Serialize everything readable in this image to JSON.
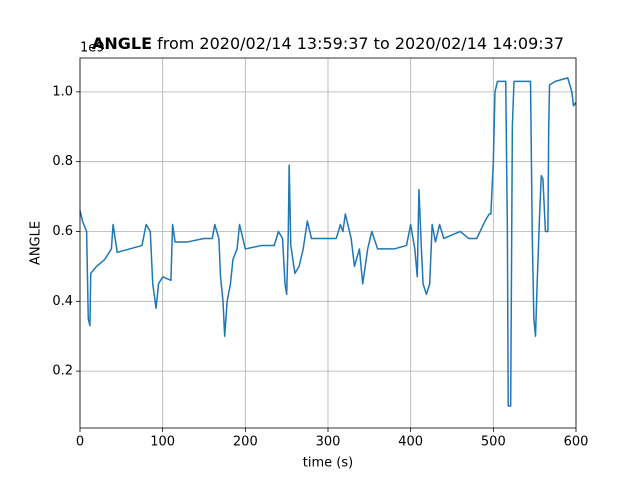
{
  "chart_data": {
    "type": "line",
    "title_bold": "ANGLE",
    "title": "from 2020/02/14 13:59:37 to 2020/02/14 14:09:37",
    "x_label": "time (s)",
    "y_label": "ANGLE",
    "y_offset_label": "1e9",
    "xlim": [
      0,
      600
    ],
    "xticks": [
      0,
      100,
      200,
      300,
      400,
      500,
      600
    ],
    "ylim": [
      0.037,
      1.097
    ],
    "yticks": [
      0.2,
      0.4,
      0.6,
      0.8,
      {
        "value": 1,
        "label": "1.0"
      }
    ],
    "grid": true,
    "series": [
      {
        "color": "#1f77b4",
        "x": [
          0,
          3,
          8,
          10,
          12,
          13,
          20,
          30,
          38,
          40,
          45,
          60,
          75,
          80,
          85,
          88,
          92,
          95,
          100,
          110,
          112,
          115,
          130,
          150,
          160,
          163,
          168,
          170,
          173,
          175,
          178,
          182,
          185,
          190,
          193,
          200,
          220,
          235,
          240,
          245,
          248,
          250,
          252,
          253,
          255,
          260,
          265,
          270,
          275,
          280,
          300,
          310,
          315,
          318,
          321,
          328,
          332,
          338,
          342,
          348,
          353,
          360,
          380,
          395,
          400,
          405,
          408,
          410,
          413,
          415,
          419,
          423,
          426,
          430,
          435,
          440,
          450,
          460,
          470,
          480,
          490,
          495,
          497,
          500,
          502,
          505,
          515,
          517,
          518,
          521,
          523,
          525,
          545,
          547,
          549,
          551,
          553,
          556,
          558,
          560,
          563,
          566,
          567,
          568,
          575,
          590,
          595,
          597,
          600
        ],
        "values": [
          0.66,
          0.63,
          0.6,
          0.35,
          0.33,
          0.48,
          0.5,
          0.52,
          0.55,
          0.62,
          0.54,
          0.55,
          0.56,
          0.62,
          0.6,
          0.45,
          0.38,
          0.45,
          0.47,
          0.46,
          0.62,
          0.57,
          0.57,
          0.58,
          0.58,
          0.62,
          0.58,
          0.47,
          0.4,
          0.3,
          0.4,
          0.45,
          0.52,
          0.55,
          0.62,
          0.55,
          0.56,
          0.56,
          0.6,
          0.58,
          0.45,
          0.42,
          0.6,
          0.79,
          0.56,
          0.48,
          0.5,
          0.55,
          0.63,
          0.58,
          0.58,
          0.58,
          0.62,
          0.6,
          0.65,
          0.58,
          0.5,
          0.55,
          0.45,
          0.55,
          0.6,
          0.55,
          0.55,
          0.56,
          0.62,
          0.55,
          0.47,
          0.72,
          0.55,
          0.45,
          0.42,
          0.45,
          0.62,
          0.57,
          0.62,
          0.58,
          0.59,
          0.6,
          0.58,
          0.58,
          0.63,
          0.65,
          0.65,
          0.8,
          1.0,
          1.03,
          1.03,
          0.6,
          0.1,
          0.1,
          0.9,
          1.03,
          1.03,
          0.6,
          0.35,
          0.3,
          0.45,
          0.65,
          0.76,
          0.75,
          0.6,
          0.6,
          0.9,
          1.02,
          1.03,
          1.04,
          1.0,
          0.96,
          0.97
        ]
      }
    ]
  }
}
